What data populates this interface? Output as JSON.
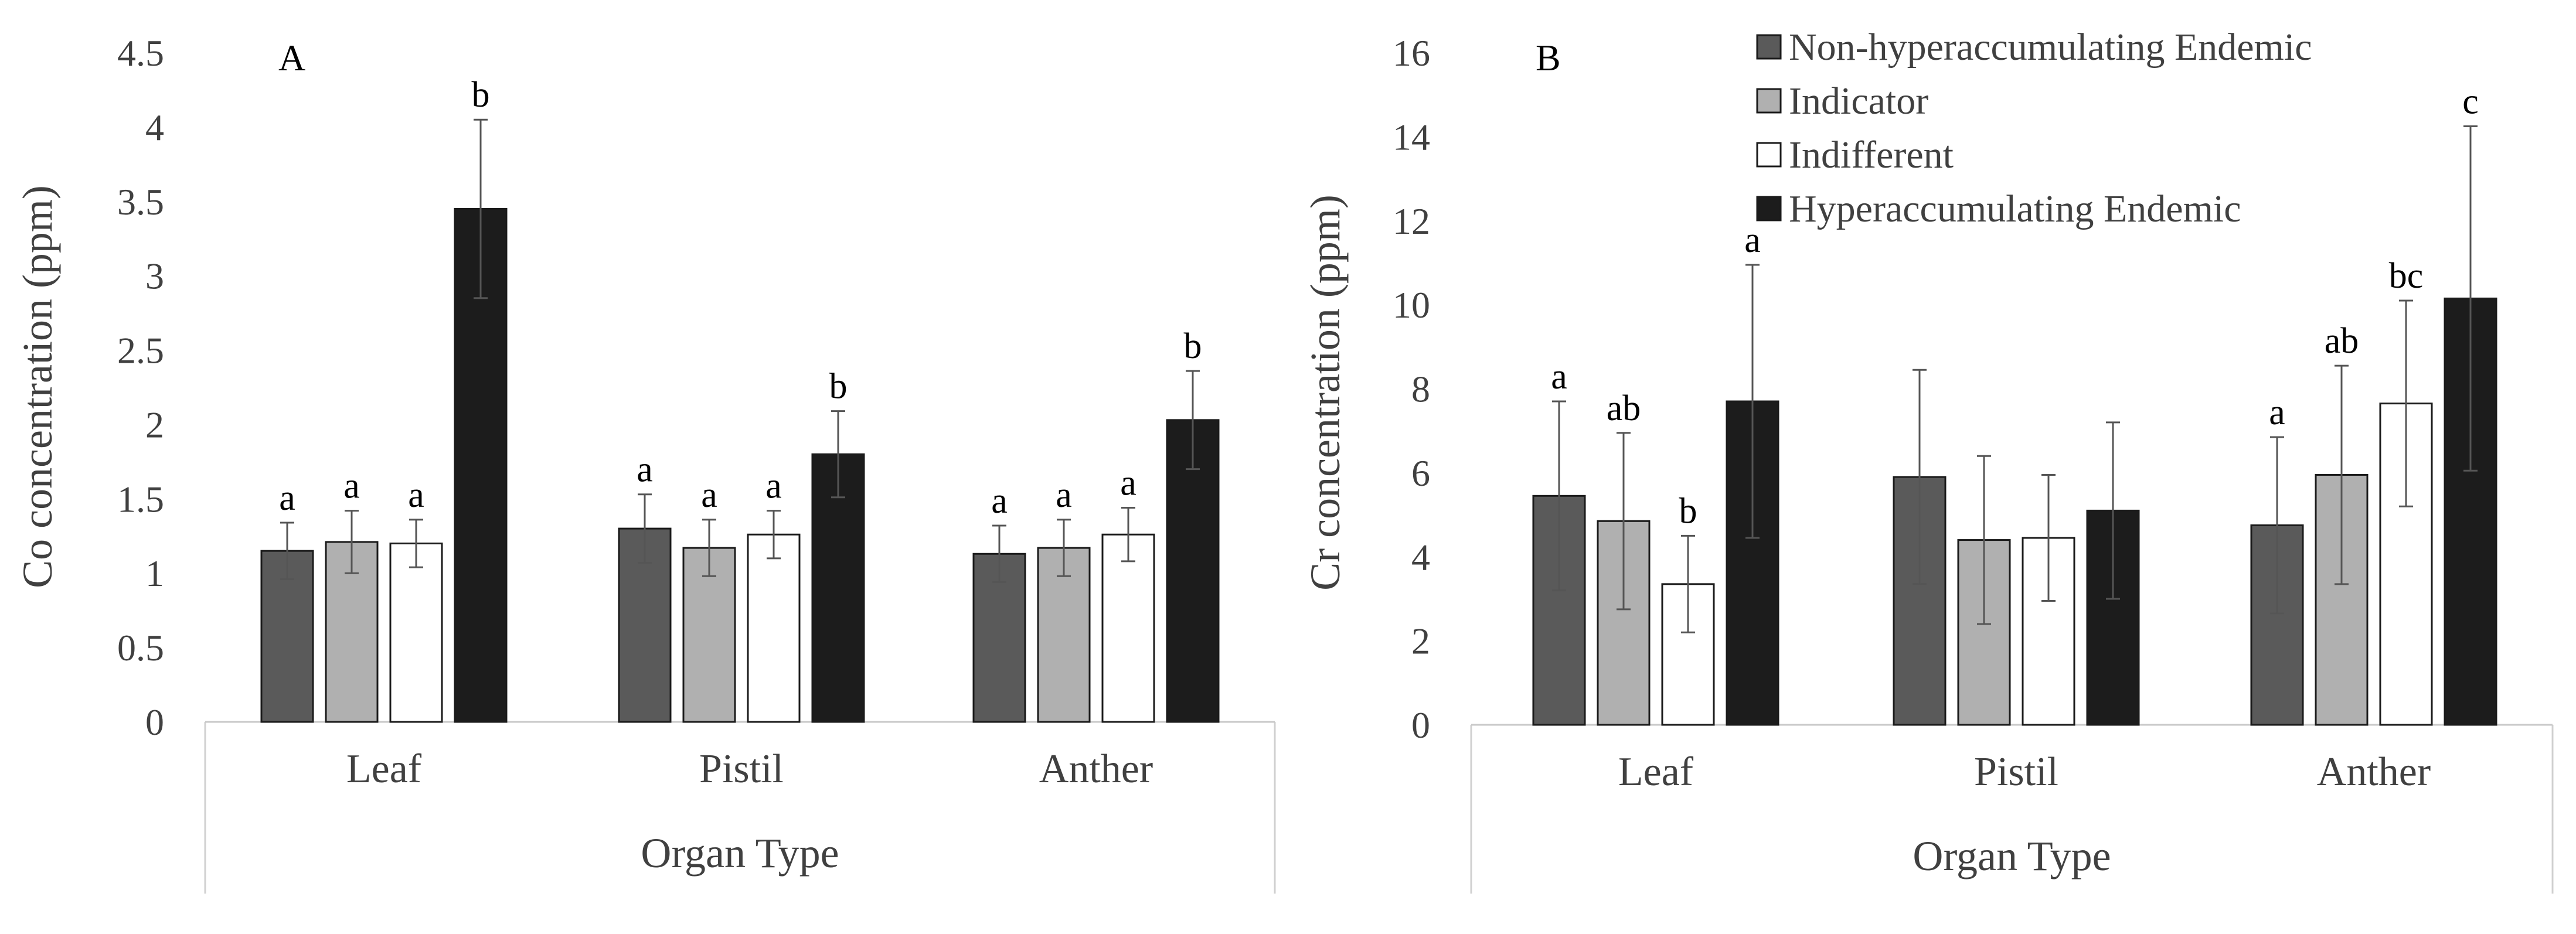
{
  "chart_data": [
    {
      "type": "bar",
      "panel_label": "A",
      "title": "",
      "xlabel": "Organ Type",
      "ylabel": "Co concentration (ppm)",
      "ylim": [
        0,
        4.5
      ],
      "yticks": [
        "0",
        "0.5",
        "1",
        "1.5",
        "2",
        "2.5",
        "3",
        "3.5",
        "4",
        "4.5"
      ],
      "categories": [
        "Leaf",
        "Pistil",
        "Anther"
      ],
      "series": [
        {
          "name": "Non-hyperaccumulating Endemic",
          "values": [
            1.15,
            1.3,
            1.13
          ],
          "errors": [
            0.19,
            0.23,
            0.19
          ],
          "letters": [
            "a",
            "a",
            "a"
          ]
        },
        {
          "name": "Indicator",
          "values": [
            1.21,
            1.17,
            1.17
          ],
          "errors": [
            0.21,
            0.19,
            0.19
          ],
          "letters": [
            "a",
            "a",
            "a"
          ]
        },
        {
          "name": "Indifferent",
          "values": [
            1.2,
            1.26,
            1.26
          ],
          "errors": [
            0.16,
            0.16,
            0.18
          ],
          "letters": [
            "a",
            "a",
            "a"
          ]
        },
        {
          "name": "Hyperaccumulating Endemic",
          "values": [
            3.45,
            1.8,
            2.03
          ],
          "errors": [
            0.6,
            0.29,
            0.33
          ],
          "letters": [
            "b",
            "b",
            "b"
          ]
        }
      ]
    },
    {
      "type": "bar",
      "panel_label": "B",
      "title": "",
      "xlabel": "Organ Type",
      "ylabel": "Cr concentration (ppm)",
      "ylim": [
        0,
        16
      ],
      "yticks": [
        "0",
        "2",
        "4",
        "6",
        "8",
        "10",
        "12",
        "14",
        "16"
      ],
      "categories": [
        "Leaf",
        "Pistil",
        "Anther"
      ],
      "legend_position": "top-right",
      "series": [
        {
          "name": "Non-hyperaccumulating Endemic",
          "values": [
            5.45,
            5.9,
            4.75
          ],
          "errors": [
            2.25,
            2.55,
            2.1
          ],
          "letters": [
            "a",
            "",
            "a"
          ]
        },
        {
          "name": "Indicator",
          "values": [
            4.85,
            4.4,
            5.95
          ],
          "errors": [
            2.1,
            2.0,
            2.6
          ],
          "letters": [
            "ab",
            "",
            "ab"
          ]
        },
        {
          "name": "Indifferent",
          "values": [
            3.35,
            4.45,
            7.65
          ],
          "errors": [
            1.15,
            1.5,
            2.45
          ],
          "letters": [
            "b",
            "",
            "bc"
          ]
        },
        {
          "name": "Hyperaccumulating Endemic",
          "values": [
            7.7,
            5.1,
            10.15
          ],
          "errors": [
            3.25,
            2.1,
            4.1
          ],
          "letters": [
            "a",
            "",
            "c"
          ]
        }
      ]
    }
  ],
  "colors": [
    "#5a5a5a",
    "#b0b0b0",
    "#ffffff",
    "#1c1c1c"
  ],
  "legend": {
    "items": [
      {
        "name": "Non-hyperaccumulating Endemic"
      },
      {
        "name": "Indicator"
      },
      {
        "name": "Indifferent"
      },
      {
        "name": "Hyperaccumulating Endemic"
      }
    ]
  }
}
